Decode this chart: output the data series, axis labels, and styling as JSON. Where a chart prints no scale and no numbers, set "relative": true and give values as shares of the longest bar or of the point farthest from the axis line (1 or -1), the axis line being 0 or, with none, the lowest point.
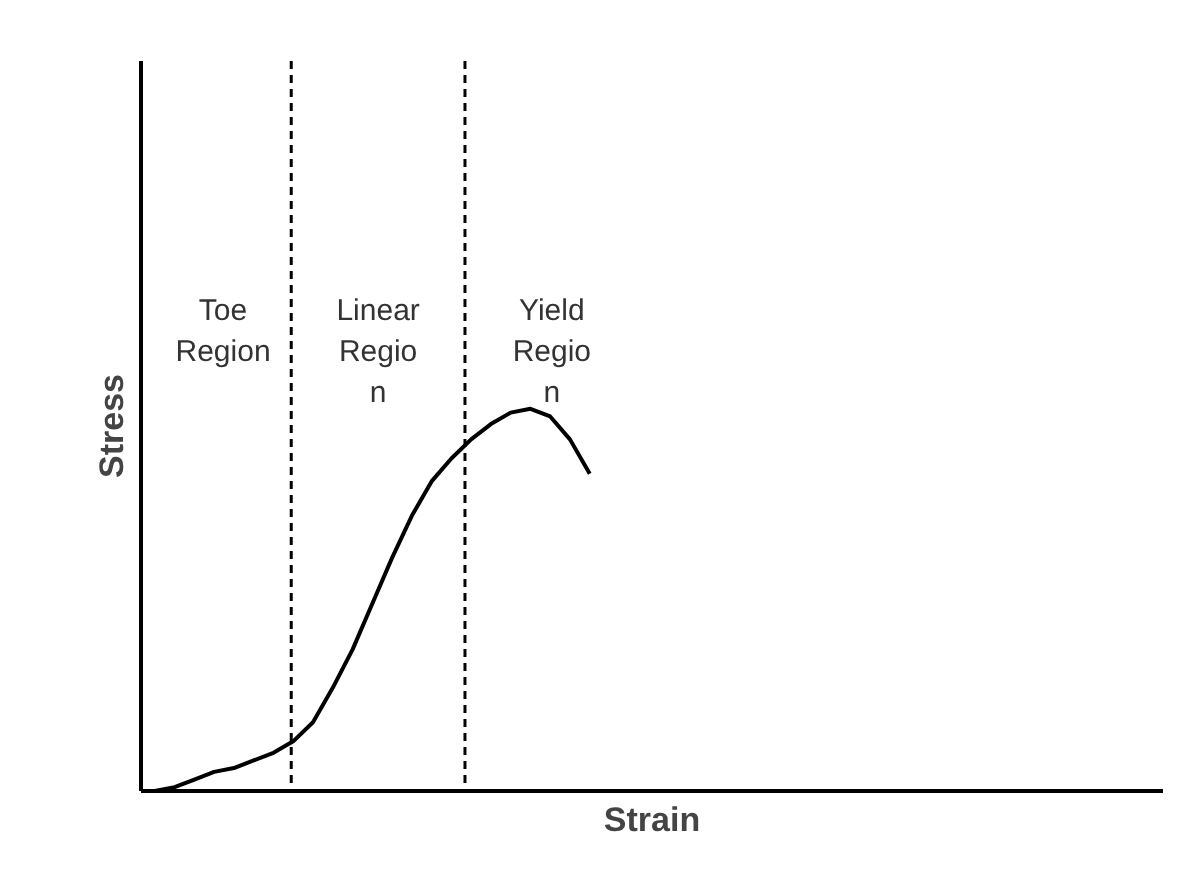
{
  "chart_data": {
    "type": "line",
    "xlabel": "Strain",
    "ylabel": "Stress",
    "relative": true,
    "categories": [
      null,
      null,
      null,
      null,
      null,
      null,
      null,
      null,
      null,
      null,
      null,
      null,
      null,
      null,
      null,
      null,
      null,
      null,
      null,
      null,
      null,
      null,
      null,
      null,
      null,
      null,
      null,
      null,
      null,
      null,
      null,
      null,
      null,
      null,
      null,
      null,
      null,
      null,
      null,
      null,
      null,
      null,
      null,
      null,
      null,
      null,
      null,
      null,
      null,
      null,
      null
    ],
    "series": [
      {
        "color": "#000000",
        "line_style": "solid",
        "values": [
          0,
          0.01,
          0.03,
          0.05,
          0.06,
          0.08,
          0.1,
          0.13,
          0.18,
          0.27,
          0.37,
          0.49,
          0.61,
          0.72,
          0.81,
          0.87,
          0.92,
          0.96,
          0.99,
          1,
          0.98,
          0.92,
          0.83,
          null,
          null,
          null,
          null,
          null,
          null,
          null,
          null,
          null,
          null,
          null,
          null,
          null,
          null,
          null,
          null,
          null,
          null,
          null,
          null,
          null,
          null,
          null,
          null,
          null,
          null,
          null,
          null
        ]
      }
    ],
    "annotations": [
      "Toe\nRegion",
      "Linear\nRegio\nn",
      "Yield\nRegio\nn"
    ]
  }
}
